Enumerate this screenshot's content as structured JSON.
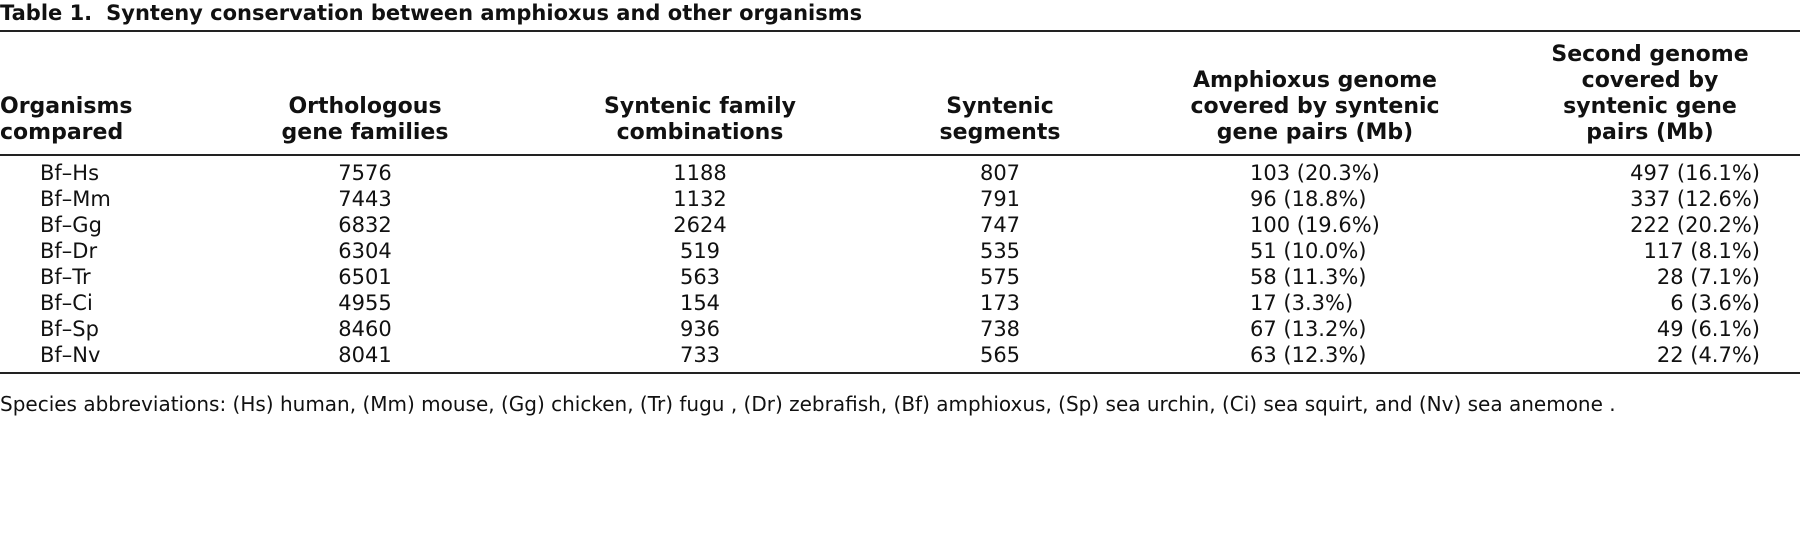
{
  "title": {
    "label": "Table 1.",
    "text": "Synteny conservation between amphioxus and other organisms"
  },
  "table": {
    "columns": [
      "Organisms compared",
      "Orthologous gene families",
      "Syntenic family combinations",
      "Syntenic segments",
      "Amphioxus genome covered by syntenic gene pairs (Mb)",
      "Second genome covered by syntenic gene pairs (Mb)"
    ],
    "rows": [
      [
        "Bf–Hs",
        "7576",
        "1188",
        "807",
        "103 (20.3%)",
        "497 (16.1%)"
      ],
      [
        "Bf–Mm",
        "7443",
        "1132",
        "791",
        "96 (18.8%)",
        "337 (12.6%)"
      ],
      [
        "Bf–Gg",
        "6832",
        "2624",
        "747",
        "100 (19.6%)",
        "222 (20.2%)"
      ],
      [
        "Bf–Dr",
        "6304",
        "519",
        "535",
        "51 (10.0%)",
        "117 (8.1%)"
      ],
      [
        "Bf–Tr",
        "6501",
        "563",
        "575",
        "58 (11.3%)",
        "28 (7.1%)"
      ],
      [
        "Bf–Ci",
        "4955",
        "154",
        "173",
        "17 (3.3%)",
        "6 (3.6%)"
      ],
      [
        "Bf–Sp",
        "8460",
        "936",
        "738",
        "67 (13.2%)",
        "49 (6.1%)"
      ],
      [
        "Bf–Nv",
        "8041",
        "733",
        "565",
        "63 (12.3%)",
        "22 (4.7%)"
      ]
    ]
  },
  "footnote": "Species abbreviations: (Hs) human, (Mm) mouse, (Gg) chicken, (Tr) fugu , (Dr) zebrafish, (Bf) amphioxus, (Sp) sea urchin, (Ci) sea squirt, and (Nv) sea anemone ."
}
